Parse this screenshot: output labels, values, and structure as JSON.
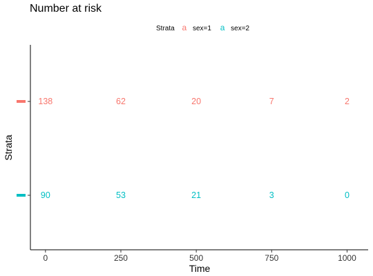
{
  "chart_data": {
    "type": "table",
    "title": "Number at risk",
    "xlabel": "Time",
    "ylabel": "Strata",
    "xlim": [
      -50,
      1070
    ],
    "x_ticks": [
      0,
      250,
      500,
      750,
      1000
    ],
    "legend": {
      "title": "Strata",
      "placement": "top",
      "key_glyph": "a",
      "entries": [
        {
          "name": "sex=1",
          "color": "#F8766D"
        },
        {
          "name": "sex=2",
          "color": "#00BFC4"
        }
      ]
    },
    "series": [
      {
        "name": "sex=1",
        "color": "#F8766D",
        "x": [
          0,
          250,
          500,
          750,
          1000
        ],
        "values": [
          138,
          62,
          20,
          7,
          2
        ]
      },
      {
        "name": "sex=2",
        "color": "#00BFC4",
        "x": [
          0,
          250,
          500,
          750,
          1000
        ],
        "values": [
          90,
          53,
          21,
          3,
          0
        ]
      }
    ],
    "grid": false
  }
}
